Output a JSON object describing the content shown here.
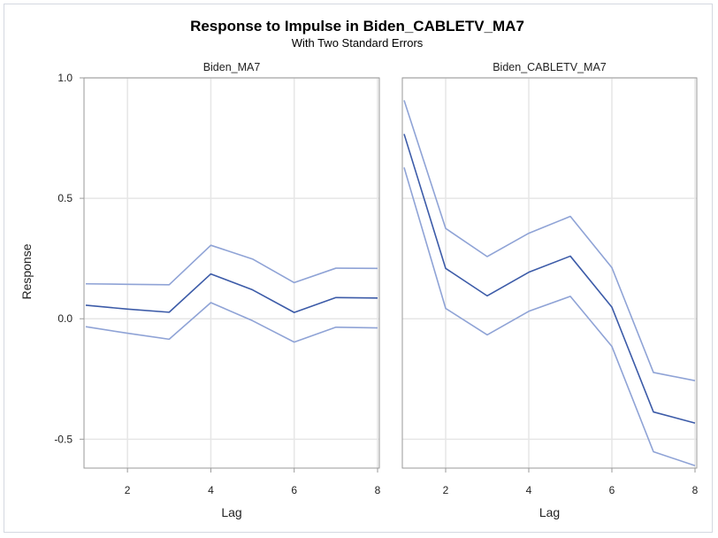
{
  "chart_data": {
    "type": "line",
    "title": "Response to Impulse in Biden_CABLETV_MA7",
    "subtitle": "With Two Standard Errors",
    "ylabel": "Response",
    "ylim": [
      -0.62,
      1.0
    ],
    "yticks": [
      "1.0",
      "0.5",
      "0.0",
      "-0.5"
    ],
    "ytick_values": [
      1.0,
      0.5,
      0.0,
      -0.5
    ],
    "xlim": [
      1,
      8
    ],
    "xticks": [
      "2",
      "4",
      "6",
      "8"
    ],
    "xtick_values": [
      2,
      4,
      6,
      8
    ],
    "grid": true,
    "colors": {
      "response": "#3c5ba8",
      "bands": "#8fa3d6",
      "grid": "#e6e6e6",
      "border": "#9a9a9a"
    },
    "panels": [
      {
        "name": "Biden_MA7",
        "xlabel": "Lag",
        "x": [
          1,
          2,
          3,
          4,
          5,
          6,
          7,
          8
        ],
        "series": [
          {
            "role": "upper",
            "values": [
              0.145,
              0.143,
              0.141,
              0.305,
              0.248,
              0.15,
              0.21,
              0.209
            ]
          },
          {
            "role": "response",
            "values": [
              0.056,
              0.04,
              0.027,
              0.186,
              0.12,
              0.026,
              0.088,
              0.086
            ]
          },
          {
            "role": "lower",
            "values": [
              -0.033,
              -0.06,
              -0.085,
              0.067,
              -0.008,
              -0.097,
              -0.035,
              -0.038
            ]
          }
        ]
      },
      {
        "name": "Biden_CABLETV_MA7",
        "xlabel": "Lag",
        "x": [
          1,
          2,
          3,
          4,
          5,
          6,
          7,
          8
        ],
        "series": [
          {
            "role": "upper",
            "values": [
              0.907,
              0.375,
              0.258,
              0.355,
              0.425,
              0.212,
              -0.223,
              -0.257
            ]
          },
          {
            "role": "response",
            "values": [
              0.767,
              0.209,
              0.095,
              0.193,
              0.26,
              0.048,
              -0.387,
              -0.433
            ]
          },
          {
            "role": "lower",
            "values": [
              0.628,
              0.043,
              -0.067,
              0.031,
              0.093,
              -0.115,
              -0.552,
              -0.61
            ]
          }
        ]
      }
    ]
  }
}
